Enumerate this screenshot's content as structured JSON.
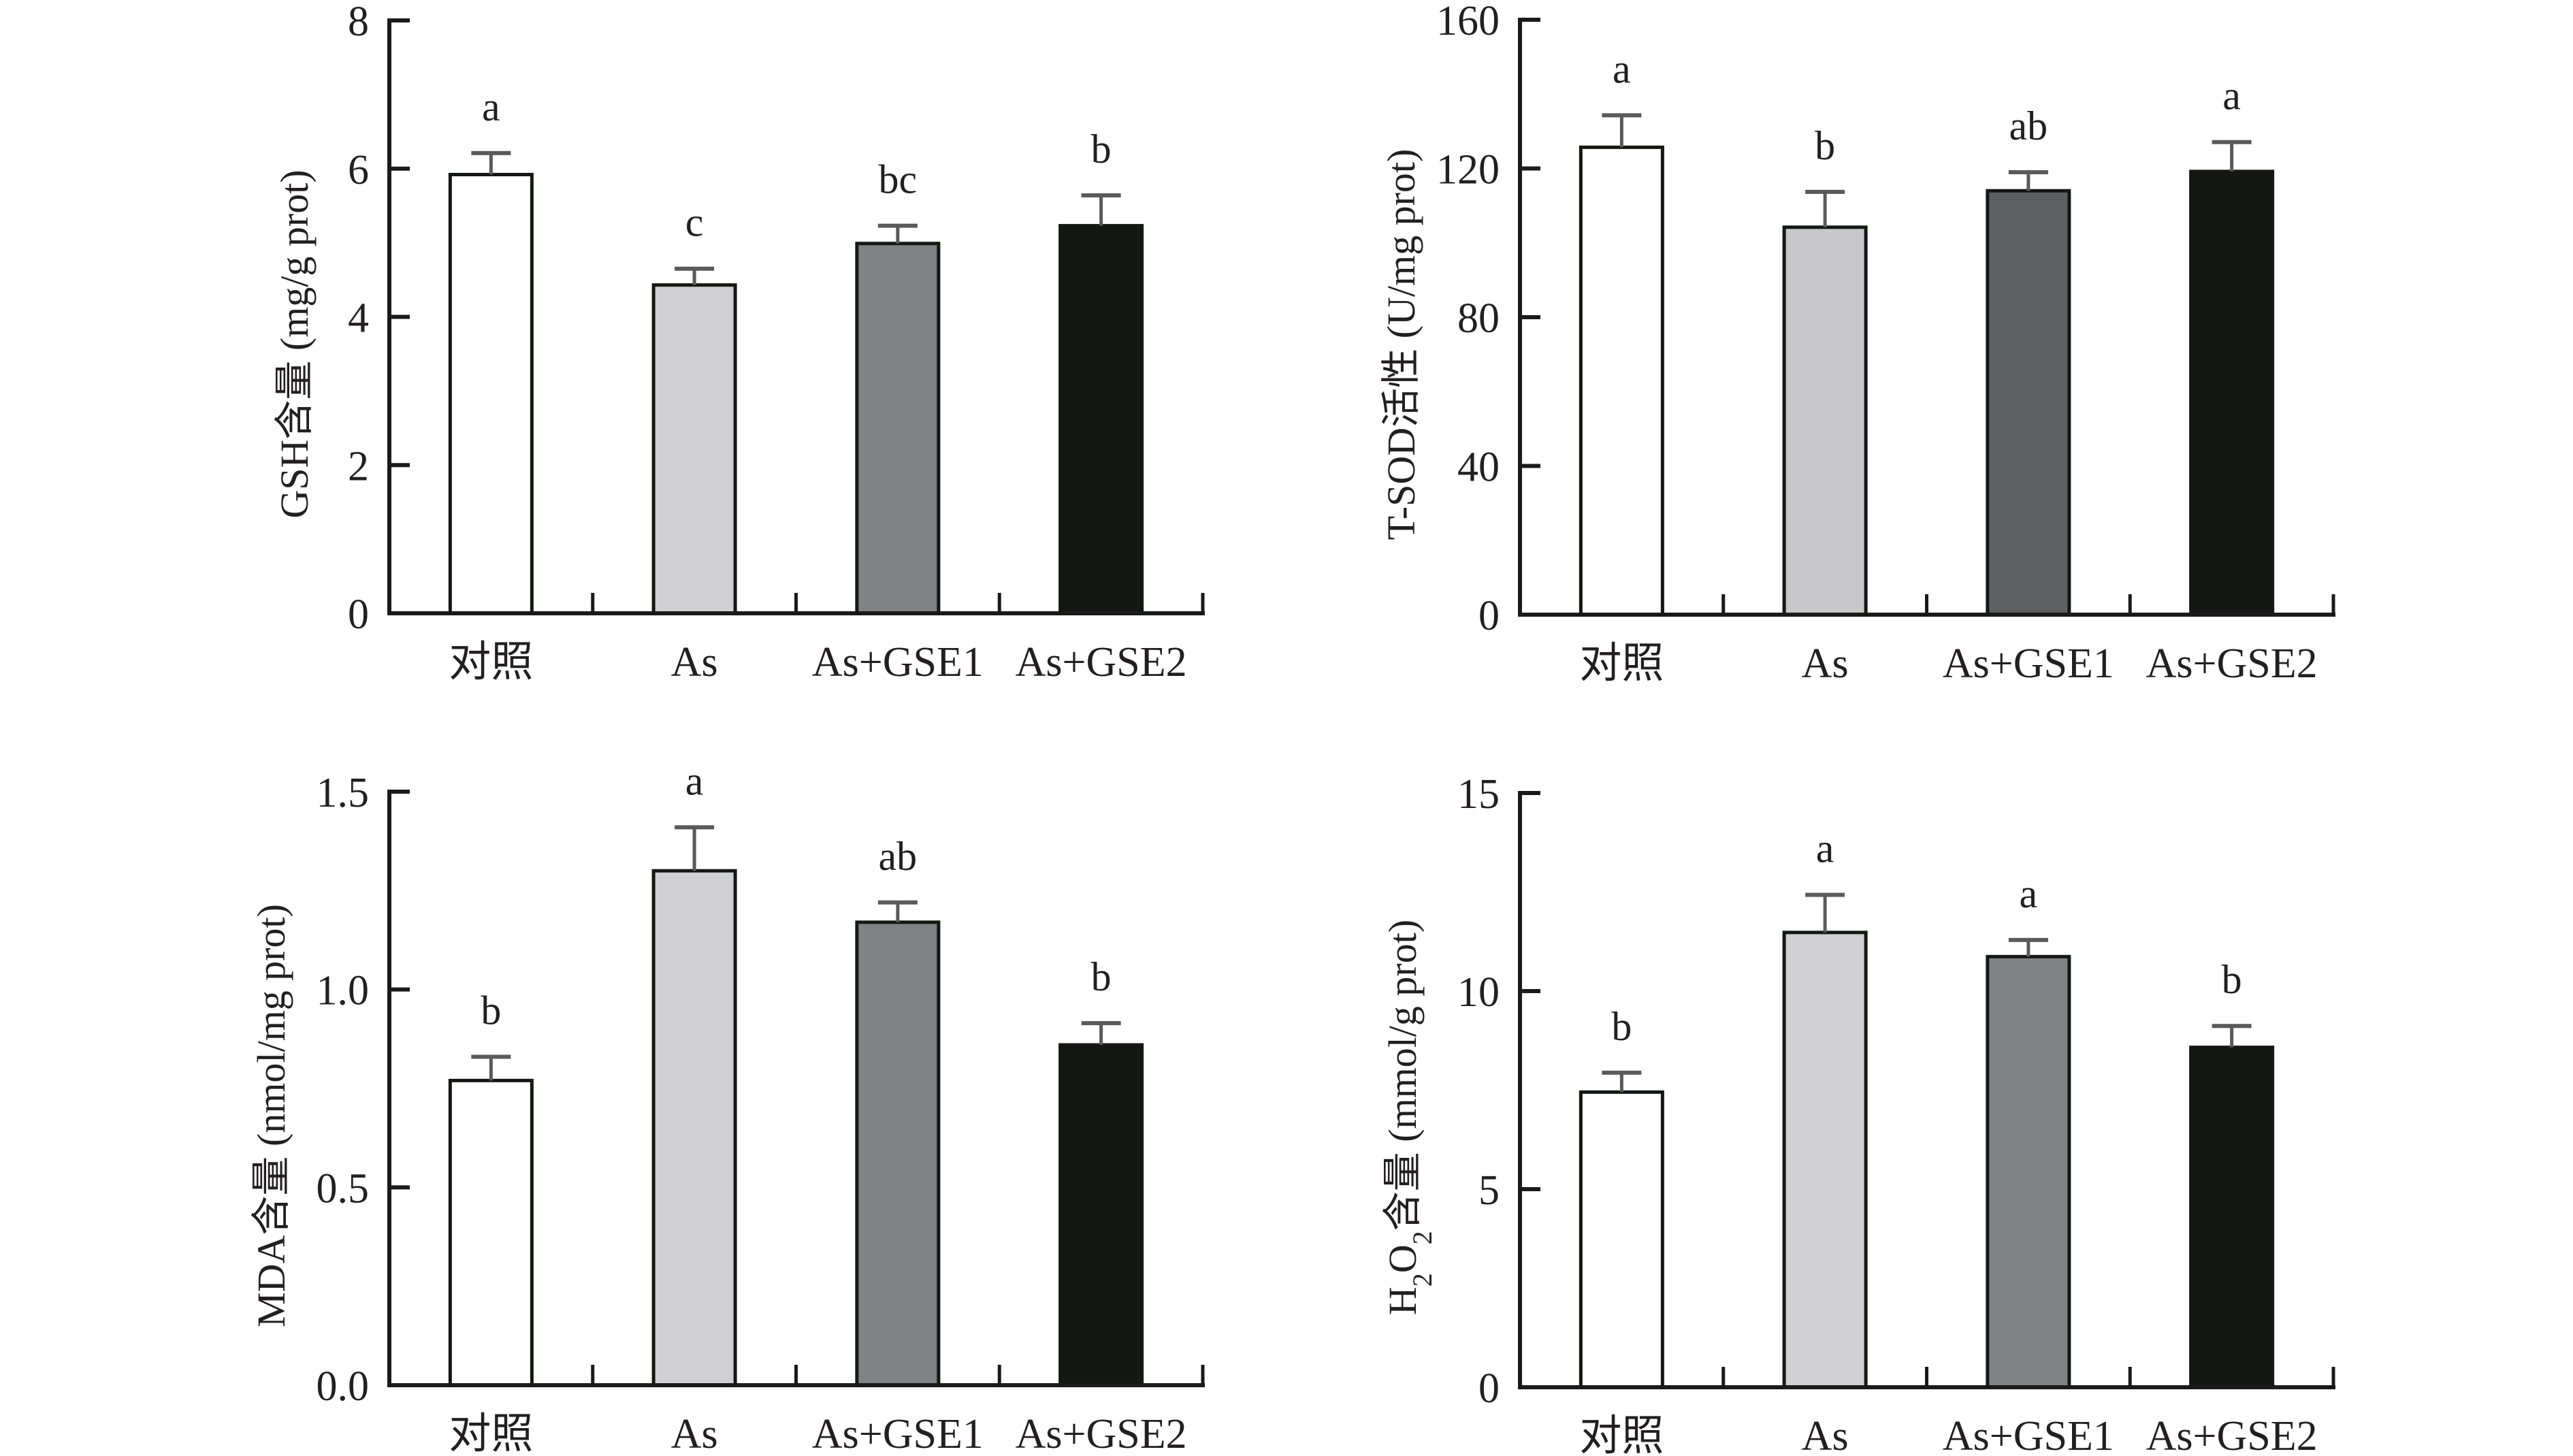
{
  "figure": {
    "description": "Four bar charts of oxidative stress indices by treatment group"
  },
  "colors": {
    "axis": "#1a1a1a",
    "error_bar": "#5a5a5a",
    "bar_outline": "#151714",
    "control": "#ffffff",
    "as": "#d0d0d2",
    "as_gse1": "#818285",
    "as_gse1_dark": "#5e5f61",
    "as_gse2": "#151714"
  },
  "chart_data": [
    {
      "id": "gsh",
      "type": "bar",
      "title": "",
      "ylabel": "GSH含量 (mg/g prot)",
      "ylabel_parts": [
        "GSH含量 (mg/g prot)"
      ],
      "xlabel": "",
      "categories": [
        "对照",
        "As",
        "As+GSE1",
        "As+GSE2"
      ],
      "values": [
        5.92,
        4.43,
        4.99,
        5.23
      ],
      "error": [
        0.29,
        0.22,
        0.24,
        0.41
      ],
      "significance": [
        "a",
        "c",
        "bc",
        "b"
      ],
      "ylim": [
        0,
        8
      ],
      "yticks": [
        0,
        2,
        4,
        6,
        8
      ],
      "ytick_labels": [
        "0",
        "2",
        "4",
        "6",
        "8"
      ],
      "bar_colors": [
        "#ffffff",
        "#d0d0d2",
        "#818285",
        "#151714"
      ],
      "grid": false,
      "legend": "none"
    },
    {
      "id": "tsod",
      "type": "bar",
      "title": "",
      "ylabel": "T-SOD活性 (U/mg prot)",
      "xlabel": "",
      "categories": [
        "对照",
        "As",
        "As+GSE1",
        "As+GSE2"
      ],
      "values": [
        125.7,
        104.2,
        114.0,
        119.2
      ],
      "error": [
        8.6,
        9.5,
        5.0,
        7.9
      ],
      "significance": [
        "a",
        "b",
        "ab",
        "a"
      ],
      "ylim": [
        0,
        160
      ],
      "yticks": [
        0,
        40,
        80,
        120,
        160
      ],
      "ytick_labels": [
        "0",
        "40",
        "80",
        "120",
        "160"
      ],
      "bar_colors": [
        "#ffffff",
        "#c8c8ca",
        "#5e5f61",
        "#151714"
      ],
      "grid": false,
      "legend": "none"
    },
    {
      "id": "mda",
      "type": "bar",
      "title": "",
      "ylabel": "MDA含量 (nmol/mg prot)",
      "xlabel": "",
      "categories": [
        "对照",
        "As",
        "As+GSE1",
        "As+GSE2"
      ],
      "values": [
        0.77,
        1.3,
        1.17,
        0.86
      ],
      "error": [
        0.06,
        0.11,
        0.05,
        0.055
      ],
      "significance": [
        "b",
        "a",
        "ab",
        "b"
      ],
      "ylim": [
        0,
        1.5
      ],
      "yticks": [
        0,
        0.5,
        1.0,
        1.5
      ],
      "ytick_labels": [
        "0.0",
        "0.5",
        "1.0",
        "1.5"
      ],
      "bar_colors": [
        "#ffffff",
        "#d0d0d2",
        "#818285",
        "#151714"
      ],
      "grid": false,
      "legend": "none"
    },
    {
      "id": "h2o2",
      "type": "bar",
      "title": "",
      "ylabel": "H2O2含量 (mmol/g prot)",
      "ylabel_segments": [
        {
          "text": "H",
          "sub": false
        },
        {
          "text": "2",
          "sub": true
        },
        {
          "text": "O",
          "sub": false
        },
        {
          "text": "2",
          "sub": true
        },
        {
          "text": "含量 (mmol/g prot)",
          "sub": false
        }
      ],
      "xlabel": "",
      "categories": [
        "对照",
        "As",
        "As+GSE1",
        "As+GSE2"
      ],
      "values": [
        7.45,
        11.48,
        10.87,
        8.58
      ],
      "error": [
        0.49,
        0.95,
        0.42,
        0.54
      ],
      "significance": [
        "b",
        "a",
        "a",
        "b"
      ],
      "ylim": [
        0,
        15
      ],
      "yticks": [
        0,
        5,
        10,
        15
      ],
      "ytick_labels": [
        "0",
        "5",
        "10",
        "15"
      ],
      "bar_colors": [
        "#ffffff",
        "#d0d0d2",
        "#818285",
        "#151714"
      ],
      "grid": false,
      "legend": "none"
    }
  ]
}
